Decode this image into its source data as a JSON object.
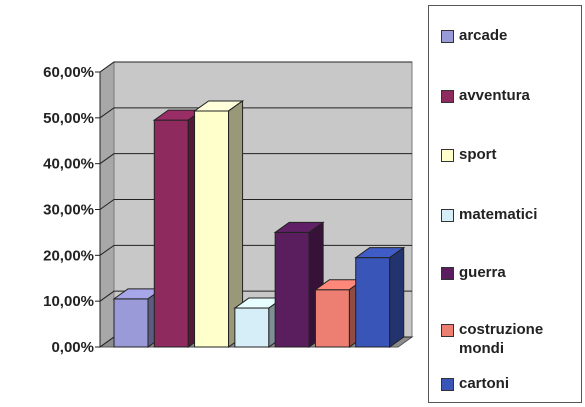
{
  "chart_data": {
    "type": "bar",
    "style": "3d-column",
    "categories": [
      "arcade",
      "avventura",
      "sport",
      "matematici",
      "guerra",
      "costruzione mondi",
      "cartoni"
    ],
    "values": [
      10.5,
      49.5,
      51.5,
      8.5,
      25.0,
      12.5,
      19.5
    ],
    "unit": "%",
    "colors": [
      "#9a9ad8",
      "#8e2a5e",
      "#ffffcc",
      "#d6eef8",
      "#5a1e5e",
      "#ec7e72",
      "#3a55b8"
    ],
    "ylim": [
      0,
      60
    ],
    "yticks": [
      "0,00%",
      "10,00%",
      "20,00%",
      "30,00%",
      "40,00%",
      "50,00%",
      "60,00%"
    ],
    "grid": true,
    "legend_position": "right",
    "plot_wall_color": "#c8c8c8"
  }
}
